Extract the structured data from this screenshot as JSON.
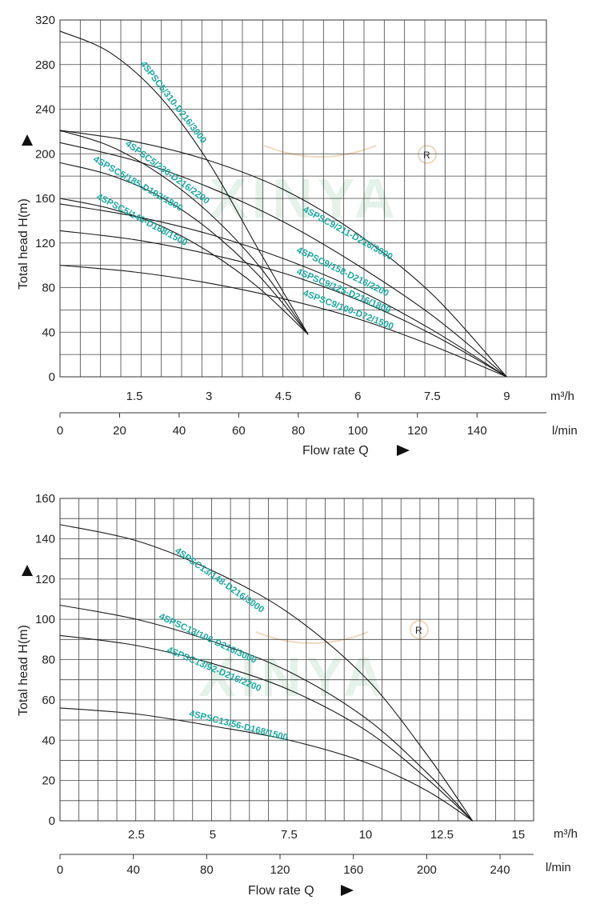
{
  "colors": {
    "curve_label": "#1aa9a0",
    "grid": "#444444",
    "curve": "#1a1a1a",
    "watermark": "#cfe9d9"
  },
  "watermark_text": "XINYA",
  "chart_data": [
    {
      "type": "line",
      "ylabel": "Total head H(m)",
      "xlabel": "Flow rate Q",
      "x_unit_primary": "m³/h",
      "x_unit_secondary": "l/min",
      "xlim": [
        0,
        9.8
      ],
      "ylim": [
        0,
        320
      ],
      "yticks": [
        0,
        40,
        80,
        120,
        160,
        200,
        240,
        280,
        320
      ],
      "xticks_m3h": [
        1.5,
        3,
        4.5,
        6,
        7.5,
        9
      ],
      "xticks_m3h_labels": [
        "1.5",
        "3",
        "4.5",
        "6",
        "7.5",
        "9"
      ],
      "xticks_lmin": [
        0,
        20,
        40,
        60,
        80,
        100,
        120,
        140
      ],
      "grid": true,
      "series": [
        {
          "name": "4SPSC5/310-D216/3000",
          "x": [
            0,
            1,
            2,
            3,
            4,
            5
          ],
          "y": [
            310,
            291,
            252,
            192,
            114,
            38
          ]
        },
        {
          "name": "4SPSC5/230-D216/2200",
          "x": [
            0,
            1,
            2,
            3,
            4,
            5
          ],
          "y": [
            221,
            207,
            182,
            147,
            100,
            38
          ]
        },
        {
          "name": "4SPSC5/185-D192/1800",
          "x": [
            0,
            1,
            2,
            3,
            4,
            5
          ],
          "y": [
            192,
            181,
            162,
            132,
            91,
            38
          ]
        },
        {
          "name": "4SPSC5/146-D168/1500",
          "x": [
            0,
            1,
            2,
            3,
            4,
            5
          ],
          "y": [
            160,
            151,
            136,
            112,
            80,
            38
          ]
        },
        {
          "name": "4SPSC9/211-D216/3000",
          "x": [
            0,
            1.5,
            3,
            4.5,
            6,
            7.5,
            9
          ],
          "y": [
            221,
            211,
            194,
            168,
            128,
            74,
            0
          ]
        },
        {
          "name": "4SPSC9/158-D216/2200",
          "x": [
            0,
            1.5,
            3,
            4.5,
            6,
            7.5,
            9
          ],
          "y": [
            210,
            194,
            170,
            139,
            100,
            55,
            0
          ]
        },
        {
          "name": "4SPSC9/125-D216/1800",
          "x": [
            0,
            1.5,
            3,
            4.5,
            6,
            7.5,
            9
          ],
          "y": [
            155,
            144,
            128,
            106,
            78,
            42,
            0
          ]
        },
        {
          "name": "4SPSC9/100-D72/1500",
          "x": [
            0,
            1.5,
            3,
            4.5,
            6,
            7.5,
            9
          ],
          "y": [
            131,
            123,
            110,
            93,
            69,
            38,
            0
          ]
        },
        {
          "name": "",
          "x": [
            0,
            1.5,
            3,
            4.5,
            6,
            7.5,
            9
          ],
          "y": [
            100,
            94,
            84,
            70,
            52,
            28,
            0
          ]
        }
      ],
      "labels": [
        {
          "text": "4SPSC5/310-D216/3000"
        },
        {
          "text": "4SPSC5/230-D216/2200"
        },
        {
          "text": "4SPSC5/185-D192/1800"
        },
        {
          "text": "4SPSC5/146-D168/1500"
        },
        {
          "text": "4SPSC9/211-D216/3000"
        },
        {
          "text": "4SPSC9/158-D216/2200"
        },
        {
          "text": "4SPSC9/125-D216/1800"
        },
        {
          "text": "4SPSC9/100-D72/1500"
        }
      ]
    },
    {
      "type": "line",
      "ylabel": "Total head H(m)",
      "xlabel": "Flow rate Q",
      "x_unit_primary": "m³/h",
      "x_unit_secondary": "l/min",
      "xlim": [
        0,
        15.5
      ],
      "ylim": [
        0,
        160
      ],
      "yticks": [
        0,
        20,
        40,
        60,
        80,
        100,
        120,
        140,
        160
      ],
      "xticks_m3h": [
        2.5,
        5,
        7.5,
        10,
        12.5,
        15
      ],
      "xticks_m3h_labels": [
        "2.5",
        "5",
        "7.5",
        "10",
        "12.5",
        "15"
      ],
      "xticks_lmin": [
        0,
        40,
        80,
        120,
        160,
        200,
        240
      ],
      "grid": true,
      "series": [
        {
          "name": "4SPSC13/148-D216/3000",
          "x": [
            0,
            2.5,
            5,
            7.5,
            10,
            12,
            13.5
          ],
          "y": [
            147,
            139,
            124,
            103,
            71,
            33,
            0
          ]
        },
        {
          "name": "4SPSC13/106-D216/3000",
          "x": [
            0,
            2.5,
            5,
            7.5,
            10,
            12,
            13.5
          ],
          "y": [
            107,
            100,
            89,
            74,
            51,
            24,
            0
          ]
        },
        {
          "name": "4SPSC13/92-D216/2200",
          "x": [
            0,
            2.5,
            5,
            7.5,
            10,
            12,
            13.5
          ],
          "y": [
            92,
            87,
            78,
            65,
            45,
            21,
            0
          ]
        },
        {
          "name": "4SPSC13/56-D168/1500",
          "x": [
            0,
            2.5,
            5,
            7.5,
            10,
            12,
            13.5
          ],
          "y": [
            56,
            53,
            47,
            40,
            29,
            15,
            0
          ]
        }
      ],
      "labels": [
        {
          "text": "4SPSC13/148-D216/3000"
        },
        {
          "text": "4SPSC13/106-D216/3000"
        },
        {
          "text": "4SPSC13/92-D216/2200"
        },
        {
          "text": "4SPSC13/56-D168/1500"
        }
      ]
    }
  ]
}
